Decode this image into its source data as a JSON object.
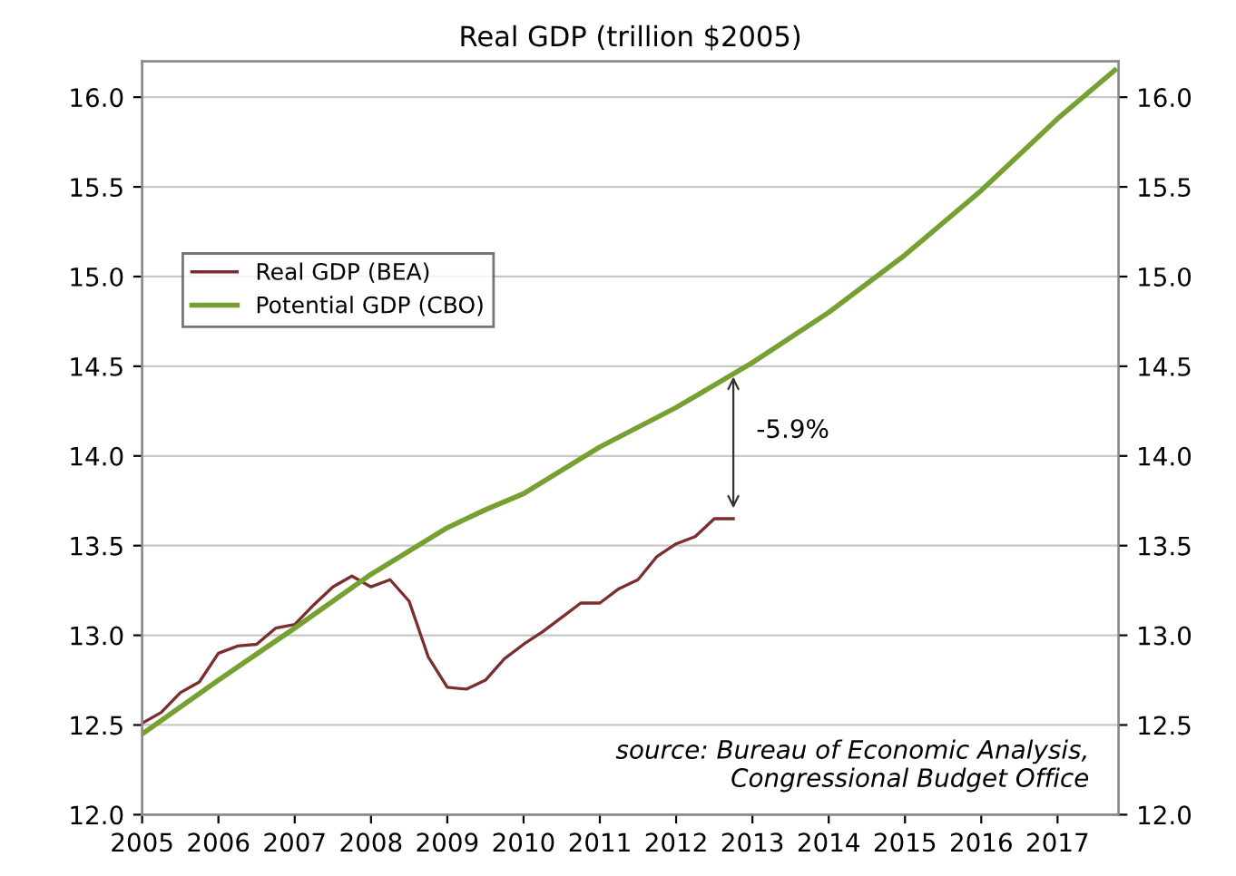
{
  "chart_data": {
    "type": "line",
    "title": "Real GDP (trillion $2005)",
    "xlim": [
      2005,
      2017.8
    ],
    "xticks": [
      2005,
      2006,
      2007,
      2008,
      2009,
      2010,
      2011,
      2012,
      2013,
      2014,
      2015,
      2016,
      2017
    ],
    "ylim": [
      12.0,
      16.2
    ],
    "yticks": [
      {
        "value": 12.0,
        "label": "12.0"
      },
      {
        "value": 12.5,
        "label": "12.5"
      },
      {
        "value": 13.0,
        "label": "13.0"
      },
      {
        "value": 13.5,
        "label": "13.5"
      },
      {
        "value": 14.0,
        "label": "14.0"
      },
      {
        "value": 14.5,
        "label": "14.5"
      },
      {
        "value": 15.0,
        "label": "15.0"
      },
      {
        "value": 15.5,
        "label": "15.5"
      },
      {
        "value": 16.0,
        "label": "16.0"
      }
    ],
    "y2lim": [
      12.0,
      16.2
    ],
    "y2ticks": [
      {
        "value": 12.0,
        "label": "12.0"
      },
      {
        "value": 12.5,
        "label": "12.5"
      },
      {
        "value": 13.0,
        "label": "13.0"
      },
      {
        "value": 13.5,
        "label": "13.5"
      },
      {
        "value": 14.0,
        "label": "14.0"
      },
      {
        "value": 14.5,
        "label": "14.5"
      },
      {
        "value": 15.0,
        "label": "15.0"
      },
      {
        "value": 15.5,
        "label": "15.5"
      },
      {
        "value": 16.0,
        "label": "16.0"
      }
    ],
    "grid": "y",
    "legend": "top left",
    "marker": "none",
    "line_style": "solid",
    "series": [
      {
        "name": "Real GDP (BEA)",
        "color": "#7b2e2e",
        "x": [
          2005,
          2005.25,
          2005.5,
          2005.75,
          2006,
          2006.25,
          2006.5,
          2006.75,
          2007,
          2007.25,
          2007.5,
          2007.75,
          2008,
          2008.25,
          2008.5,
          2008.75,
          2009,
          2009.25,
          2009.5,
          2009.75,
          2010,
          2010.25,
          2010.5,
          2010.75,
          2011,
          2011.25,
          2011.5,
          2011.75,
          2012,
          2012.25,
          2012.5,
          2012.75
        ],
        "values": [
          12.51,
          12.57,
          12.68,
          12.74,
          12.9,
          12.94,
          12.95,
          13.04,
          13.06,
          13.17,
          13.27,
          13.33,
          13.27,
          13.31,
          13.19,
          12.88,
          12.71,
          12.7,
          12.75,
          12.87,
          12.95,
          13.02,
          13.1,
          13.18,
          13.18,
          13.26,
          13.31,
          13.44,
          13.51,
          13.55,
          13.65,
          13.65
        ]
      },
      {
        "name": "Potential GDP (CBO)",
        "color": "#77a033",
        "x": [
          2005,
          2006,
          2007,
          2008,
          2009,
          2009.5,
          2010,
          2011,
          2012,
          2013,
          2014,
          2015,
          2016,
          2017,
          2017.75
        ],
        "values": [
          12.45,
          12.75,
          13.04,
          13.34,
          13.6,
          13.7,
          13.79,
          14.05,
          14.27,
          14.52,
          14.8,
          15.12,
          15.48,
          15.88,
          16.15
        ]
      }
    ],
    "annotations": [
      {
        "text": "-5.9%",
        "x": 2012.75,
        "y": 14.47
      },
      "source: Bureau of Economic Analysis,\nCongressional Budget Office"
    ]
  }
}
